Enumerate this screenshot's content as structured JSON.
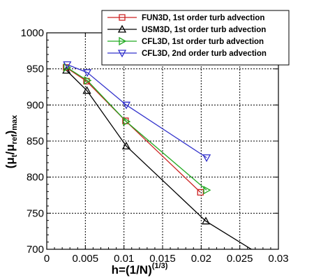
{
  "chart_data": {
    "type": "line",
    "xlabel": {
      "main": "h=(1/N)",
      "exponent": "(1/3)"
    },
    "ylabel": {
      "pre": "(μ",
      "sub1": "t",
      "mid": "/μ",
      "sub2": "ref",
      "post": ")",
      "sub3": "max"
    },
    "xlim": [
      0,
      0.03
    ],
    "ylim": [
      700,
      1000
    ],
    "xticks": [
      0,
      0.005,
      0.01,
      0.015,
      0.02,
      0.025,
      0.03
    ],
    "xtick_labels": [
      "0",
      "0.005",
      "0.01",
      "0.015",
      "0.02",
      "0.025",
      "0.03"
    ],
    "yticks": [
      700,
      750,
      800,
      850,
      900,
      950,
      1000
    ],
    "ytick_labels": [
      "700",
      "750",
      "800",
      "850",
      "900",
      "950",
      "1000"
    ],
    "legend_position": "top-right",
    "series": [
      {
        "name": "FUN3D, 1st order turb advection",
        "color": "#cc2222",
        "marker": "square",
        "x": [
          0.0025,
          0.00515,
          0.0102,
          0.0199
        ],
        "y": [
          952,
          933,
          878,
          779
        ]
      },
      {
        "name": "USM3D, 1st order turb advection",
        "color": "#000000",
        "marker": "triangle-up",
        "x": [
          0.00255,
          0.0052,
          0.0103,
          0.0206,
          0.0268
        ],
        "y": [
          948,
          920,
          843,
          739,
          698
        ]
      },
      {
        "name": "CFL3D, 1st order turb advection",
        "color": "#22aa22",
        "marker": "triangle-right",
        "x": [
          0.0026,
          0.00525,
          0.0103,
          0.0207
        ],
        "y": [
          952,
          934,
          877,
          782
        ]
      },
      {
        "name": "CFL3D, 2nd order turb advection",
        "color": "#3333cc",
        "marker": "triangle-down",
        "x": [
          0.00265,
          0.00525,
          0.0103,
          0.0207
        ],
        "y": [
          956,
          945,
          900,
          827
        ]
      }
    ]
  }
}
